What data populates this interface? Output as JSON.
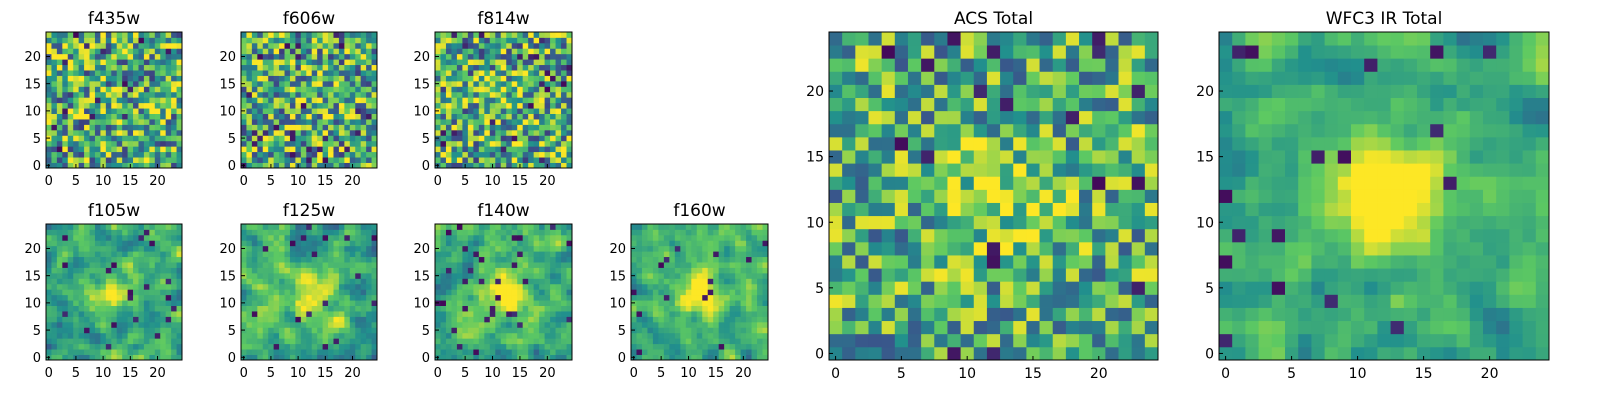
{
  "figure": {
    "background": "#ffffff"
  },
  "colormap": {
    "name": "viridis",
    "stops": [
      "#440154",
      "#3b528b",
      "#21908d",
      "#5dc962",
      "#fde725"
    ]
  },
  "chart_data": [
    {
      "type": "heatmap",
      "title": "f435w",
      "grid_size": 25,
      "xticks": [
        0,
        5,
        10,
        15,
        20
      ],
      "yticks": [
        0,
        5,
        10,
        15,
        20
      ],
      "xlim": [
        -0.5,
        24.5
      ],
      "ylim": [
        -0.5,
        24.5
      ],
      "pattern": "noise",
      "noise_level": 0.55,
      "blob_center": [
        12,
        12
      ],
      "blob_strength": 0.05,
      "seed": 11
    },
    {
      "type": "heatmap",
      "title": "f606w",
      "grid_size": 25,
      "xticks": [
        0,
        5,
        10,
        15,
        20
      ],
      "yticks": [
        0,
        5,
        10,
        15,
        20
      ],
      "xlim": [
        -0.5,
        24.5
      ],
      "ylim": [
        -0.5,
        24.5
      ],
      "pattern": "noise",
      "noise_level": 0.55,
      "blob_center": [
        12,
        12
      ],
      "blob_strength": 0.1,
      "seed": 23
    },
    {
      "type": "heatmap",
      "title": "f814w",
      "grid_size": 25,
      "xticks": [
        0,
        5,
        10,
        15,
        20
      ],
      "yticks": [
        0,
        5,
        10,
        15,
        20
      ],
      "xlim": [
        -0.5,
        24.5
      ],
      "ylim": [
        -0.5,
        24.5
      ],
      "pattern": "noise",
      "noise_level": 0.55,
      "blob_center": [
        12,
        13
      ],
      "blob_strength": 0.12,
      "seed": 37
    },
    {
      "type": "heatmap",
      "title": "f105w",
      "grid_size": 25,
      "xticks": [
        0,
        5,
        10,
        15,
        20
      ],
      "yticks": [
        0,
        5,
        10,
        15,
        20
      ],
      "xlim": [
        -0.5,
        24.5
      ],
      "ylim": [
        -0.5,
        24.5
      ],
      "pattern": "smooth",
      "noise_level": 0.4,
      "blob_center": [
        12,
        12
      ],
      "blob_strength": 0.35,
      "seed": 41
    },
    {
      "type": "heatmap",
      "title": "f125w",
      "grid_size": 25,
      "xticks": [
        0,
        5,
        10,
        15,
        20
      ],
      "yticks": [
        0,
        5,
        10,
        15,
        20
      ],
      "xlim": [
        -0.5,
        24.5
      ],
      "ylim": [
        -0.5,
        24.5
      ],
      "pattern": "smooth",
      "noise_level": 0.4,
      "blob_center": [
        13,
        11
      ],
      "blob_strength": 0.35,
      "seed": 53
    },
    {
      "type": "heatmap",
      "title": "f140w",
      "grid_size": 25,
      "xticks": [
        0,
        5,
        10,
        15,
        20
      ],
      "yticks": [
        0,
        5,
        10,
        15,
        20
      ],
      "xlim": [
        -0.5,
        24.5
      ],
      "ylim": [
        -0.5,
        24.5
      ],
      "pattern": "smooth",
      "noise_level": 0.35,
      "blob_center": [
        12,
        12
      ],
      "blob_strength": 0.45,
      "seed": 67
    },
    {
      "type": "heatmap",
      "title": "f160w",
      "grid_size": 25,
      "xticks": [
        0,
        5,
        10,
        15,
        20
      ],
      "yticks": [
        0,
        5,
        10,
        15,
        20
      ],
      "xlim": [
        -0.5,
        24.5
      ],
      "ylim": [
        -0.5,
        24.5
      ],
      "pattern": "smooth",
      "noise_level": 0.35,
      "blob_center": [
        12,
        12
      ],
      "blob_strength": 0.45,
      "seed": 79
    },
    {
      "type": "heatmap",
      "title": "ACS Total",
      "grid_size": 25,
      "xticks": [
        0,
        5,
        10,
        15,
        20
      ],
      "yticks": [
        0,
        5,
        10,
        15,
        20
      ],
      "xlim": [
        -0.5,
        24.5
      ],
      "ylim": [
        -0.5,
        24.5
      ],
      "pattern": "noise",
      "noise_level": 0.45,
      "blob_center": [
        12,
        12
      ],
      "blob_strength": 0.25,
      "seed": 97
    },
    {
      "type": "heatmap",
      "title": "WFC3 IR Total",
      "grid_size": 25,
      "xticks": [
        0,
        5,
        10,
        15,
        20
      ],
      "yticks": [
        0,
        5,
        10,
        15,
        20
      ],
      "xlim": [
        -0.5,
        24.5
      ],
      "ylim": [
        -0.5,
        24.5
      ],
      "pattern": "smooth",
      "noise_level": 0.3,
      "blob_center": [
        12,
        12
      ],
      "blob_strength": 0.55,
      "seed": 113
    }
  ]
}
